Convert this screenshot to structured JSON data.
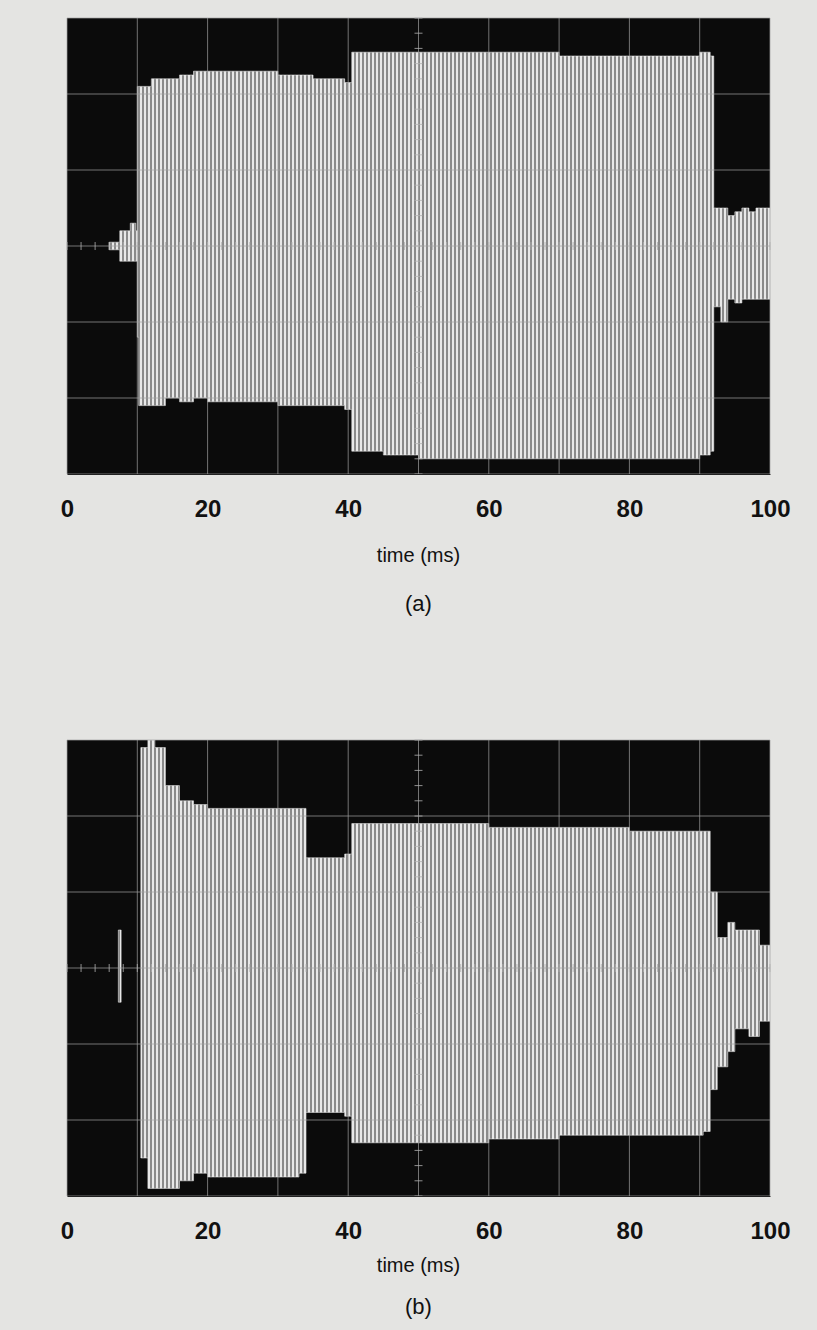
{
  "chart_data": [
    {
      "type": "area",
      "title": "(a)",
      "xlabel": "time (ms)",
      "color": "#e8e8e8",
      "grid": true,
      "tick_labels": "x",
      "xlim": [
        0,
        100
      ],
      "xticks": [
        0,
        20,
        40,
        60,
        80,
        100
      ],
      "ylim": [
        -3,
        3
      ],
      "yticks": [
        -3,
        -2,
        -1,
        0,
        1,
        2,
        3
      ],
      "x": [
        6,
        7.5,
        9,
        9.8,
        10,
        10.2,
        12,
        14,
        16,
        18,
        20,
        25,
        30,
        35,
        39.5,
        40.5,
        45,
        50,
        60,
        70,
        80,
        90,
        91.5,
        92,
        93,
        94,
        95,
        96,
        97,
        98,
        100
      ],
      "upper": [
        0.05,
        0.2,
        0.3,
        0.2,
        2.1,
        2.1,
        2.2,
        2.2,
        2.25,
        2.3,
        2.3,
        2.3,
        2.25,
        2.2,
        2.15,
        2.55,
        2.55,
        2.55,
        2.55,
        2.5,
        2.5,
        2.55,
        2.5,
        0.5,
        0.5,
        0.4,
        0.45,
        0.5,
        0.45,
        0.5,
        0.5
      ],
      "lower": [
        -0.05,
        -0.2,
        -0.2,
        -0.2,
        -1.2,
        -2.1,
        -2.1,
        -2.0,
        -2.05,
        -2.0,
        -2.05,
        -2.05,
        -2.1,
        -2.1,
        -2.15,
        -2.7,
        -2.75,
        -2.8,
        -2.8,
        -2.8,
        -2.8,
        -2.75,
        -2.7,
        -0.8,
        -1.0,
        -0.7,
        -0.75,
        -0.7,
        -0.7,
        -0.7,
        -0.7
      ]
    },
    {
      "type": "area",
      "title": "(b)",
      "xlabel": "time (ms)",
      "color": "#e8e8e8",
      "grid": true,
      "tick_labels": "x",
      "xlim": [
        0,
        100
      ],
      "xticks": [
        0,
        20,
        40,
        60,
        80,
        100
      ],
      "ylim": [
        -3,
        3
      ],
      "yticks": [
        -3,
        -2,
        -1,
        0,
        1,
        2,
        3
      ],
      "x": [
        7.3,
        7.7,
        9,
        10.5,
        11.5,
        12.5,
        14,
        16,
        18,
        20,
        25,
        30,
        33,
        34,
        39.5,
        40.5,
        50,
        60,
        70,
        80,
        90.5,
        91.5,
        92.5,
        94,
        95,
        97,
        98.5,
        100
      ],
      "upper": [
        0.5,
        0.5,
        null,
        2.9,
        3.0,
        2.9,
        2.4,
        2.2,
        2.15,
        2.1,
        2.1,
        2.1,
        2.1,
        1.45,
        1.5,
        1.9,
        1.9,
        1.85,
        1.85,
        1.8,
        1.8,
        1.0,
        0.4,
        0.6,
        0.5,
        0.5,
        0.3,
        0.3
      ],
      "lower": [
        -0.45,
        -0.45,
        null,
        -2.5,
        -2.9,
        -2.9,
        -2.9,
        -2.8,
        -2.7,
        -2.75,
        -2.75,
        -2.75,
        -2.7,
        -1.9,
        -1.95,
        -2.3,
        -2.3,
        -2.25,
        -2.2,
        -2.2,
        -2.15,
        -1.6,
        -1.3,
        -1.1,
        -0.8,
        -0.9,
        -0.7,
        -0.7
      ]
    }
  ]
}
